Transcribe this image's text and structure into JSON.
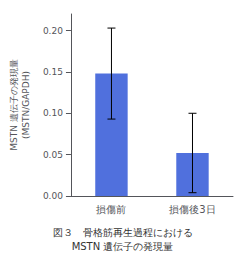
{
  "chart_data": {
    "type": "bar",
    "title": "図３　骨格筋再生過程における\nMSTN 遺伝子の発現量",
    "ylabel": "MSTN 遺伝子の発現量\n(MSTN/GAPDH)",
    "categories": [
      "損傷前",
      "損傷後3日"
    ],
    "values": [
      0.148,
      0.052
    ],
    "errors": [
      0.055,
      0.048
    ],
    "ylim": [
      0.0,
      0.22
    ],
    "yticks": [
      {
        "value": 0.0,
        "label": "0.00"
      },
      0.05,
      {
        "value": 0.1,
        "label": "0.10"
      },
      0.15,
      {
        "value": 0.2,
        "label": "0.20"
      }
    ],
    "grid": false
  }
}
